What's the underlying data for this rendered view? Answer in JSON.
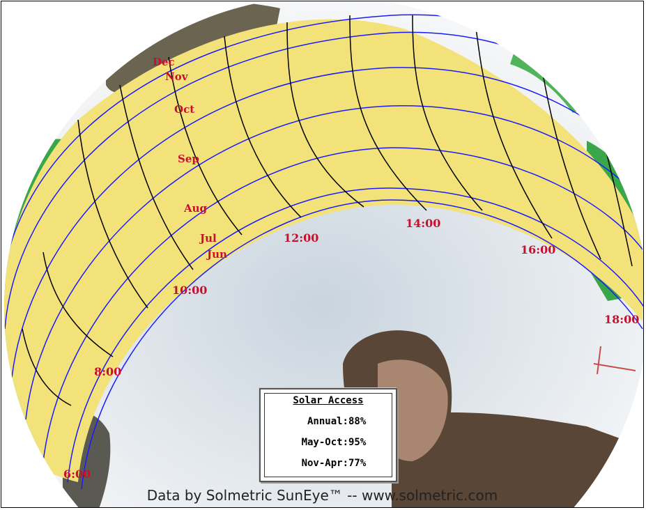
{
  "sun_path": {
    "month_labels": [
      "Dec",
      "Nov",
      "Oct",
      "Sep",
      "Aug",
      "Jul",
      "Jun"
    ],
    "hour_labels": [
      "6:00",
      "8:00",
      "10:00",
      "12:00",
      "14:00",
      "16:00",
      "18:00"
    ]
  },
  "solar_access": {
    "title": "Solar Access",
    "rows": [
      {
        "label": "Annual:",
        "value": "88%"
      },
      {
        "label": "May-Oct:",
        "value": "95%"
      },
      {
        "label": "Nov-Apr:",
        "value": "77%"
      }
    ]
  },
  "footer": {
    "credit": "Data by Solmetric SunEye™ -- www.solmetric.com"
  },
  "colors": {
    "sunpath_fill": "#f3e27a",
    "arc_lines": "#1a1aff",
    "hour_lines": "#000000",
    "labels": "#c8102e",
    "foliage": "#3aa64a",
    "sky": "#eef1f4"
  }
}
